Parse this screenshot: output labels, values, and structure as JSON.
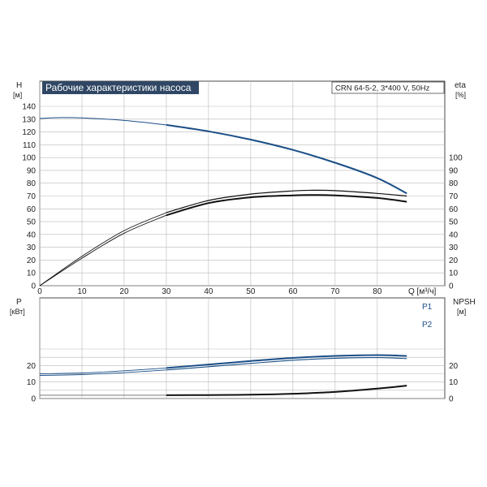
{
  "colors": {
    "frame": "#4a4a4a",
    "grid": "#b9b9b9",
    "curve_blue": "#1a4e86",
    "curve_black": "#111111",
    "title_bg": "#2f4764",
    "title_text": "#ffffff"
  },
  "chart_data": [
    {
      "type": "line",
      "title": "Рабочие характеристики насоса",
      "model_label": "CRN 64-5-2, 3*400 V, 50Hz",
      "x_axis": {
        "label": "Q [м³/ч]",
        "ticks": [
          "0",
          "10",
          "20",
          "30",
          "40",
          "50",
          "60",
          "70",
          "80"
        ],
        "range": [
          0,
          96
        ]
      },
      "y_left": {
        "label": "H",
        "unit": "[м]",
        "ticks": [
          "0",
          "10",
          "20",
          "30",
          "40",
          "50",
          "60",
          "70",
          "80",
          "90",
          "100",
          "110",
          "120",
          "130",
          "140"
        ],
        "range": [
          0,
          140
        ]
      },
      "y_right": {
        "label": "eta",
        "unit": "[%]",
        "ticks": [
          "0",
          "10",
          "20",
          "30",
          "40",
          "50",
          "60",
          "70",
          "80",
          "90",
          "100"
        ],
        "range": [
          0,
          140
        ]
      },
      "grid": true,
      "series": [
        {
          "role": "H",
          "axis": "left",
          "style": "double-blue",
          "x": [
            0,
            5,
            10,
            20,
            30,
            40,
            50,
            60,
            70,
            80,
            87
          ],
          "y": [
            130.5,
            131.2,
            131.0,
            129,
            125.5,
            120.5,
            114,
            106,
            96,
            84,
            72
          ]
        },
        {
          "role": "eta",
          "axis": "right",
          "style": "double-black",
          "x": [
            0,
            10,
            20,
            30,
            40,
            50,
            60,
            65,
            70,
            80,
            87
          ],
          "y": [
            0,
            23,
            43,
            57,
            66.5,
            71.5,
            74,
            74.5,
            74.2,
            72,
            70
          ]
        },
        {
          "role": "eta-lower",
          "axis": "right",
          "style": "double-black",
          "x": [
            0,
            10,
            20,
            30,
            40,
            50,
            60,
            65,
            70,
            80,
            87
          ],
          "y": [
            0,
            21.5,
            41,
            55,
            64.5,
            69,
            70.5,
            70.8,
            70.5,
            68.5,
            65.5
          ]
        }
      ]
    },
    {
      "type": "line",
      "x_axis": {
        "label": "Q [м³/ч]",
        "ticks": [
          "0",
          "10",
          "20",
          "30",
          "40",
          "50",
          "60",
          "70",
          "80"
        ],
        "range": [
          0,
          96
        ]
      },
      "y_left": {
        "label": "P",
        "unit": "[кВт]",
        "ticks": [
          "0",
          "10",
          "20"
        ],
        "range": [
          0,
          30
        ]
      },
      "y_right": {
        "label": "NPSH",
        "unit": "[м]",
        "ticks": [
          "0",
          "10",
          "20"
        ],
        "range": [
          0,
          30
        ]
      },
      "grid": true,
      "series": [
        {
          "name": "P1",
          "axis": "left",
          "style": "double-blue",
          "x": [
            0,
            10,
            20,
            30,
            40,
            50,
            60,
            70,
            80,
            87
          ],
          "y": [
            15,
            15.5,
            16.8,
            18.5,
            20.6,
            22.7,
            24.6,
            25.8,
            26.3,
            25.8
          ]
        },
        {
          "name": "P2",
          "axis": "left",
          "style": "single-blue",
          "x": [
            0,
            10,
            20,
            30,
            40,
            50,
            60,
            70,
            80,
            87
          ],
          "y": [
            14,
            14.5,
            15.7,
            17.3,
            19.3,
            21.3,
            23.2,
            24.4,
            24.8,
            24.2
          ]
        },
        {
          "role": "NPSH",
          "axis": "right",
          "style": "gray-then-black",
          "x": [
            0,
            30,
            40,
            50,
            60,
            70,
            80,
            87
          ],
          "y": [
            2,
            2,
            2.1,
            2.3,
            2.9,
            4.0,
            6.0,
            7.8
          ]
        }
      ]
    }
  ]
}
